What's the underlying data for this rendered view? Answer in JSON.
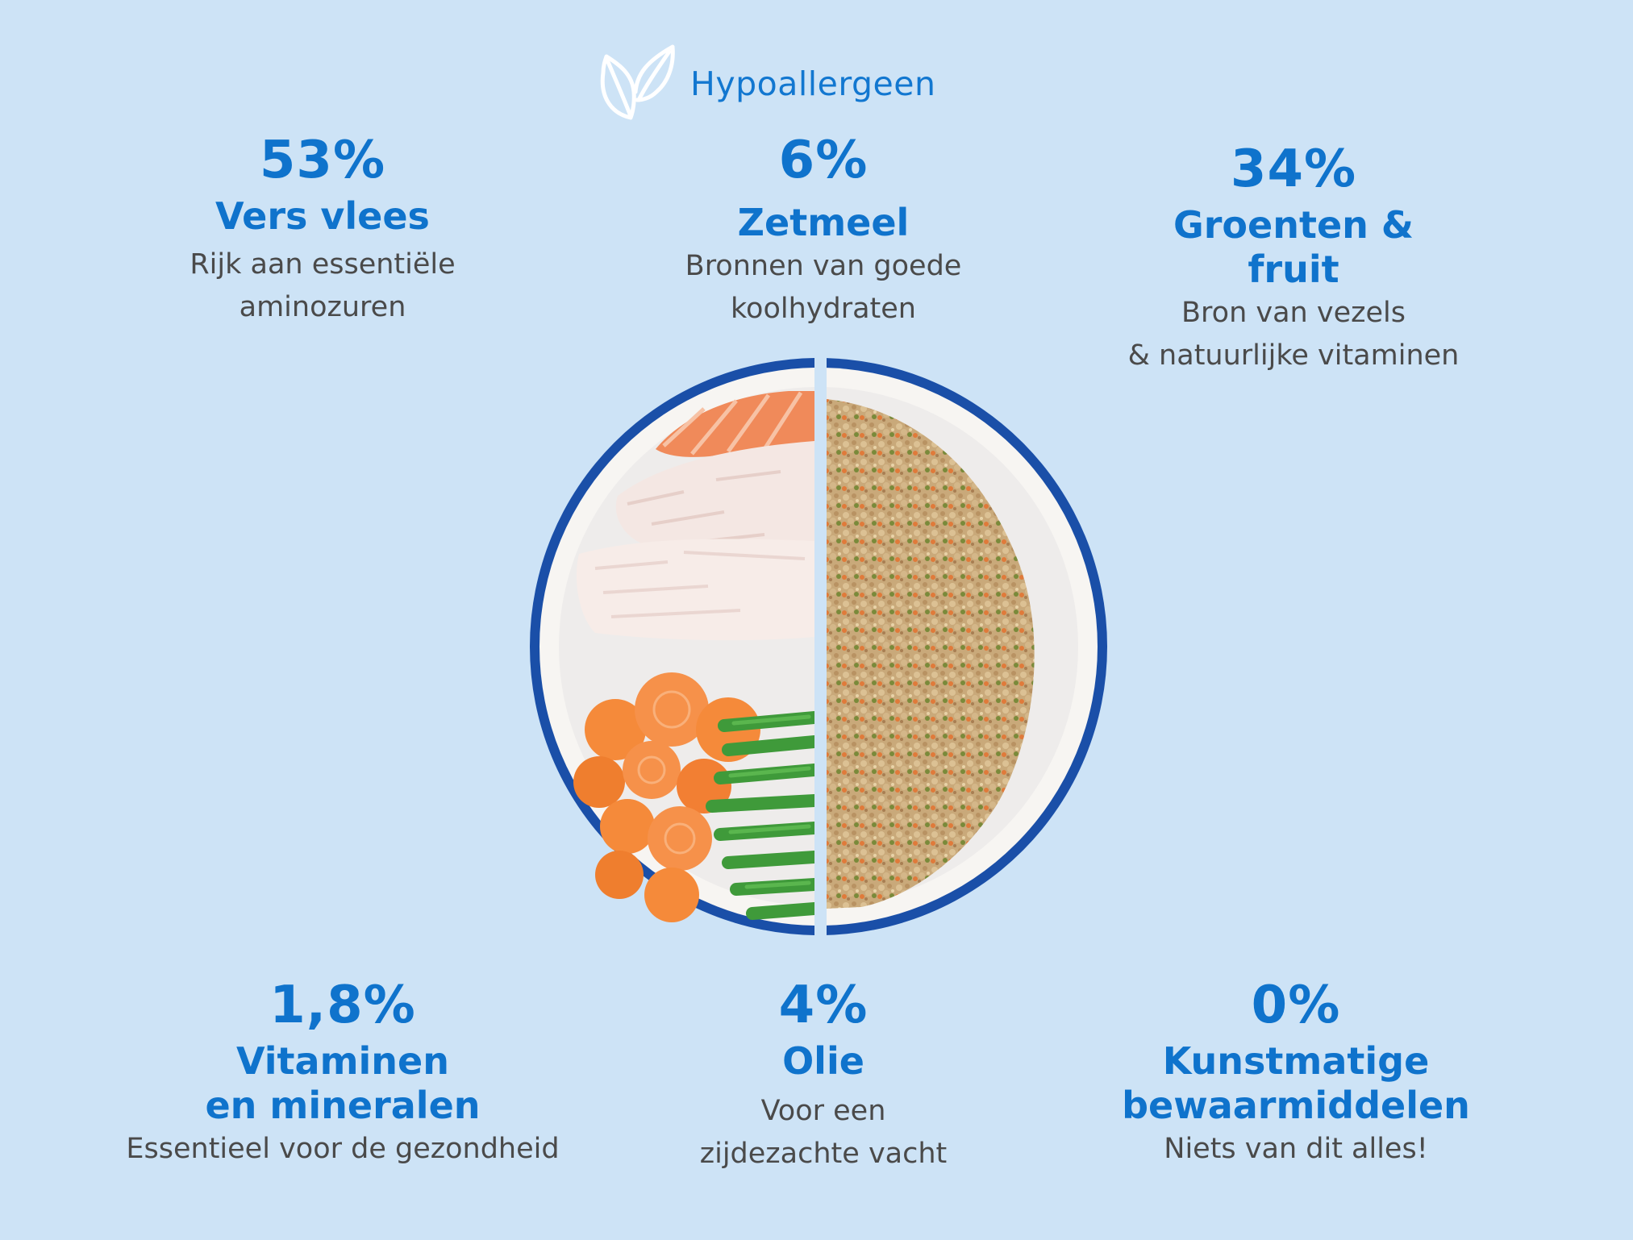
{
  "badge": {
    "icon": "leaf-icon",
    "label": "Hypoallergeen"
  },
  "stats": [
    {
      "percent": "53%",
      "name_line1": "Vers vlees",
      "desc_line1": "Rijk aan essentiële",
      "desc_line2": "aminozuren"
    },
    {
      "percent": "6%",
      "name_line1": "Zetmeel",
      "desc_line1": "Bronnen van goede",
      "desc_line2": "koolhydraten"
    },
    {
      "percent": "34%",
      "name_line1": "Groenten & fruit",
      "desc_line1": "Bron van vezels",
      "desc_line2": "& natuurlijke vitaminen"
    },
    {
      "percent": "1,8%",
      "name_line1": "Vitaminen",
      "name_line2": "en mineralen",
      "desc_line1": "Essentieel voor de gezondheid"
    },
    {
      "percent": "4%",
      "name_line1": "Olie",
      "desc_line1": "Voor een",
      "desc_line2": "zijdezachte vacht"
    },
    {
      "percent": "0%",
      "name_line1": "Kunstmatige",
      "name_line2": "bewaarmiddelen",
      "desc_line1": "Niets van dit alles!"
    }
  ],
  "colors": {
    "background": "#cde3f6",
    "accent": "#0f73cc",
    "text": "#4a4a4a",
    "plate_rim": "#1a4fa8"
  }
}
